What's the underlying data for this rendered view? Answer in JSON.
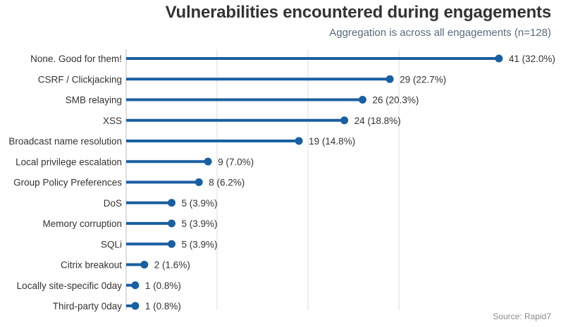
{
  "title": "Vulnerabilities encountered during engagements",
  "subtitle": "Aggregation is across all engagements (n=128)",
  "source": "Source: Rapid7",
  "colors": {
    "accent": "#1a5fa0",
    "grid": "#dddddd"
  },
  "chart_data": {
    "type": "bar",
    "orientation": "horizontal",
    "style": "lollipop",
    "categories": [
      "None. Good for them!",
      "CSRF / Clickjacking",
      "SMB relaying",
      "XSS",
      "Broadcast name resolution",
      "Local privilege escalation",
      "Group Policy Preferences",
      "DoS",
      "Memory corruption",
      "SQLi",
      "Citrix breakout",
      "Locally site-specific 0day",
      "Third-party 0day"
    ],
    "values": [
      41,
      29,
      26,
      24,
      19,
      9,
      8,
      5,
      5,
      5,
      2,
      1,
      1
    ],
    "labels": [
      "41 (32.0%)",
      "29 (22.7%)",
      "26 (20.3%)",
      "24 (18.8%)",
      "19 (14.8%)",
      "9 (7.0%)",
      "8 (6.2%)",
      "5 (3.9%)",
      "5 (3.9%)",
      "5 (3.9%)",
      "2 (1.6%)",
      "1 (0.8%)",
      "1 (0.8%)"
    ],
    "title": "Vulnerabilities encountered during engagements",
    "xlabel": "",
    "ylabel": "",
    "xlim": [
      0,
      42
    ],
    "grid": true,
    "gridlines_at": [
      10,
      20,
      30
    ]
  }
}
